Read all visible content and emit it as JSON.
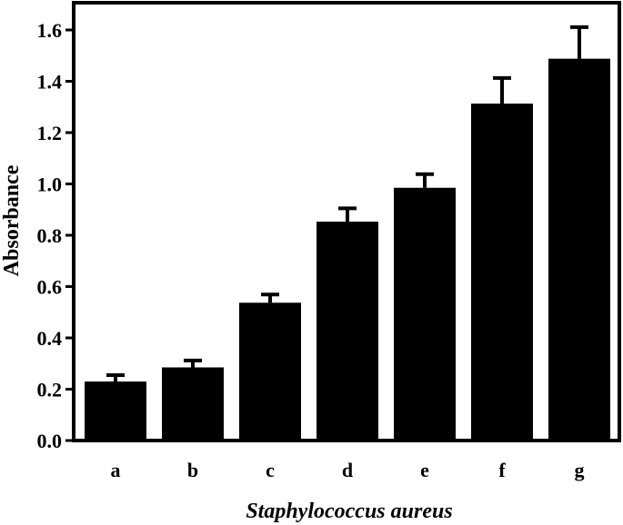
{
  "chart_data": {
    "type": "bar",
    "categories": [
      "a",
      "b",
      "c",
      "d",
      "e",
      "f",
      "g"
    ],
    "values": [
      0.23,
      0.285,
      0.537,
      0.853,
      0.985,
      1.313,
      1.488
    ],
    "errors": [
      0.025,
      0.027,
      0.032,
      0.052,
      0.053,
      0.1,
      0.123
    ],
    "xlabel": "Staphylococcus aureus",
    "ylabel": "Absorbance",
    "ylim": [
      0,
      1.7
    ],
    "yticks": [
      "0.0",
      "0.2",
      "0.4",
      "0.6",
      "0.8",
      "1.0",
      "1.2",
      "1.4",
      "1.6"
    ],
    "grid": false,
    "bar_color": "#000000"
  }
}
